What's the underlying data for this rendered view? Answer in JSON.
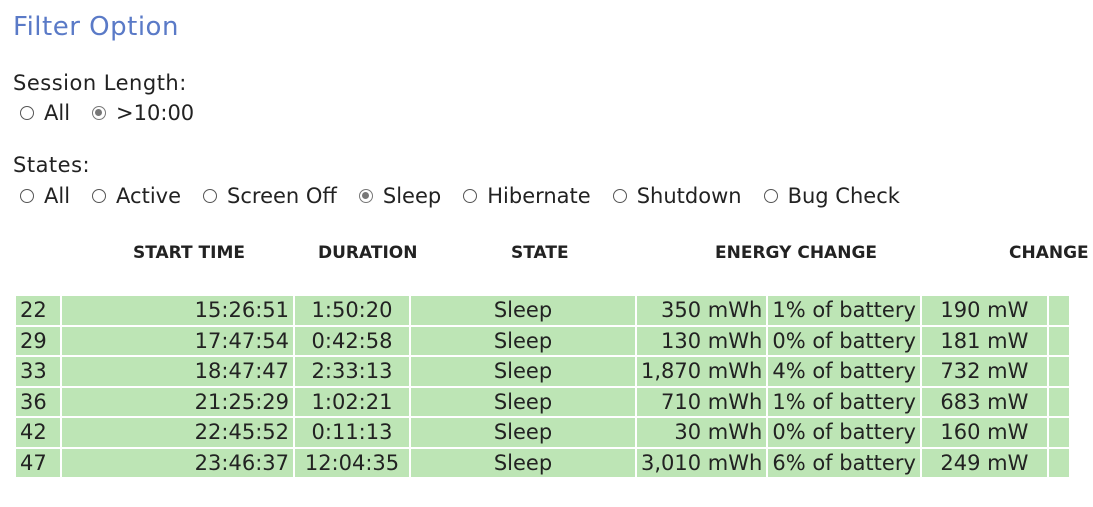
{
  "filter": {
    "title": "Filter Option",
    "session_length": {
      "label": "Session Length:",
      "options": [
        {
          "label": "All",
          "checked": false
        },
        {
          "label": ">10:00",
          "checked": true
        }
      ]
    },
    "states": {
      "label": "States:",
      "options": [
        {
          "label": "All",
          "checked": false
        },
        {
          "label": "Active",
          "checked": false
        },
        {
          "label": "Screen Off",
          "checked": false
        },
        {
          "label": "Sleep",
          "checked": true
        },
        {
          "label": "Hibernate",
          "checked": false
        },
        {
          "label": "Shutdown",
          "checked": false
        },
        {
          "label": "Bug Check",
          "checked": false
        }
      ]
    }
  },
  "table": {
    "headers": {
      "start_time": "START TIME",
      "duration": "DURATION",
      "state": "STATE",
      "energy_change": "ENERGY CHANGE",
      "change": "CHANGE"
    },
    "row_color": "#bde5b5",
    "rows": [
      {
        "id": "22",
        "start": "15:26:51",
        "duration": "1:50:20",
        "state": "Sleep",
        "energy": "350 mWh",
        "pct": "1% of battery",
        "rate": "190 mW"
      },
      {
        "id": "29",
        "start": "17:47:54",
        "duration": "0:42:58",
        "state": "Sleep",
        "energy": "130 mWh",
        "pct": "0% of battery",
        "rate": "181 mW"
      },
      {
        "id": "33",
        "start": "18:47:47",
        "duration": "2:33:13",
        "state": "Sleep",
        "energy": "1,870 mWh",
        "pct": "4% of battery",
        "rate": "732 mW"
      },
      {
        "id": "36",
        "start": "21:25:29",
        "duration": "1:02:21",
        "state": "Sleep",
        "energy": "710 mWh",
        "pct": "1% of battery",
        "rate": "683 mW"
      },
      {
        "id": "42",
        "start": "22:45:52",
        "duration": "0:11:13",
        "state": "Sleep",
        "energy": "30 mWh",
        "pct": "0% of battery",
        "rate": "160 mW"
      },
      {
        "id": "47",
        "start": "23:46:37",
        "duration": "12:04:35",
        "state": "Sleep",
        "energy": "3,010 mWh",
        "pct": "6% of battery",
        "rate": "249 mW"
      }
    ]
  }
}
